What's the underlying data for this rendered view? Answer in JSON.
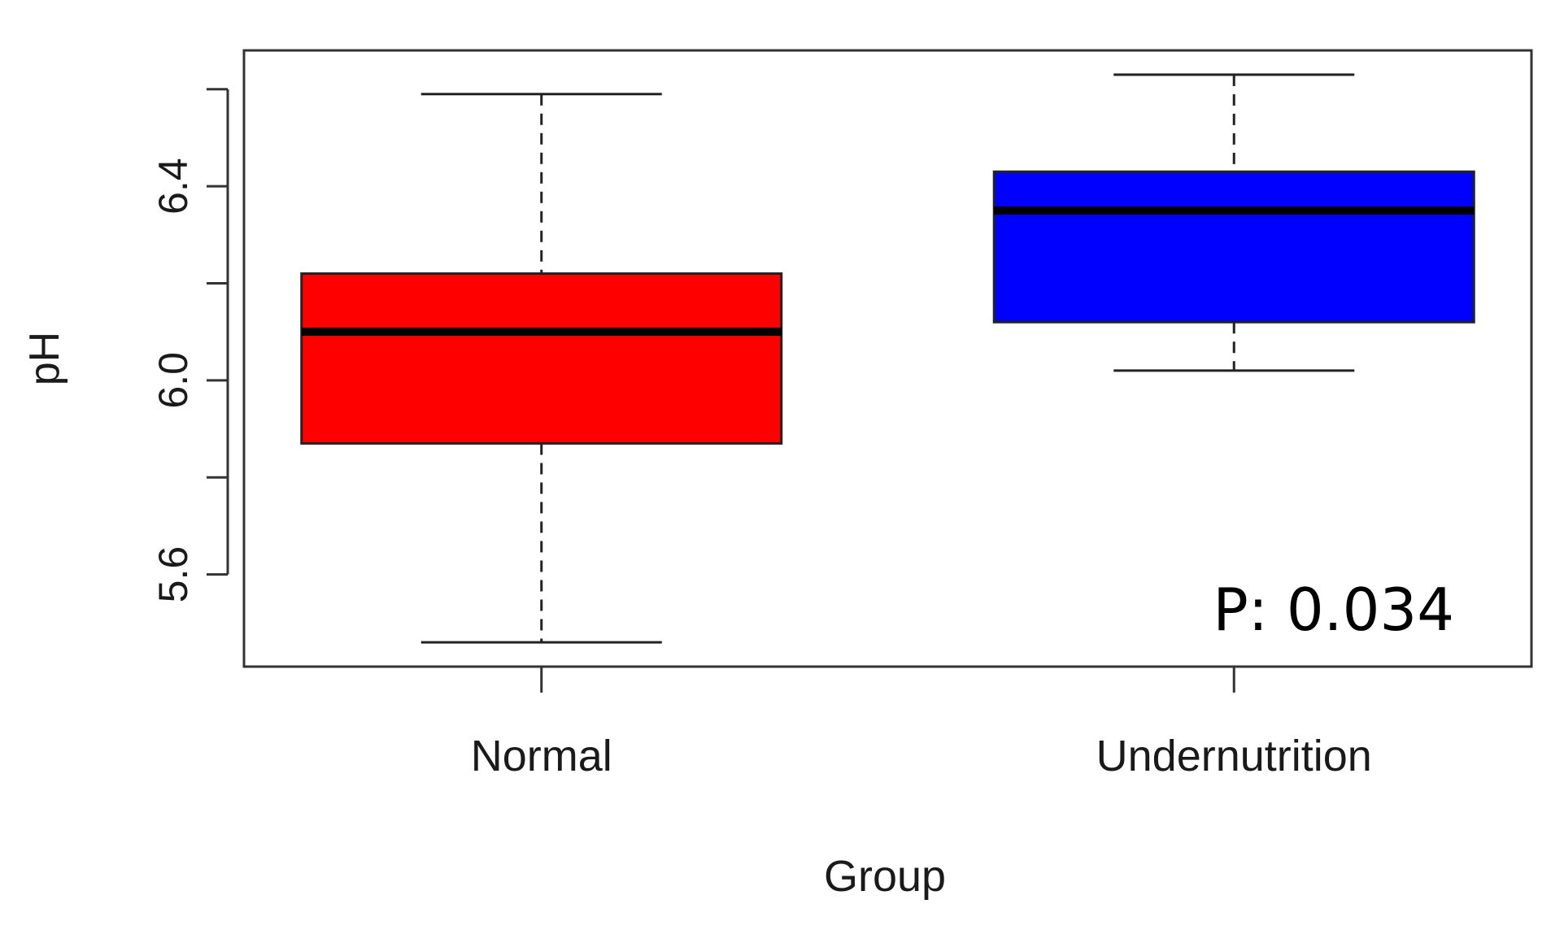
{
  "chart_data": {
    "type": "box",
    "xlabel": "Group",
    "ylabel": "pH",
    "categories": [
      "Normal",
      "Undernutrition"
    ],
    "series": [
      {
        "category": "Normal",
        "color": "#ff0000",
        "whisker_low": 5.46,
        "q1": 5.87,
        "median": 6.1,
        "q3": 6.22,
        "whisker_high": 6.59
      },
      {
        "category": "Undernutrition",
        "color": "#0000ff",
        "whisker_low": 6.02,
        "q1": 6.12,
        "median": 6.35,
        "q3": 6.43,
        "whisker_high": 6.63
      }
    ],
    "ylim": [
      5.41,
      6.68
    ],
    "yticks": [
      5.6,
      5.8,
      6.0,
      6.2,
      6.4,
      6.6
    ],
    "ytick_labels": [
      "5.6",
      "",
      "6.0",
      "",
      "6.4",
      ""
    ],
    "annotation": "P: 0.034",
    "grid": false
  }
}
